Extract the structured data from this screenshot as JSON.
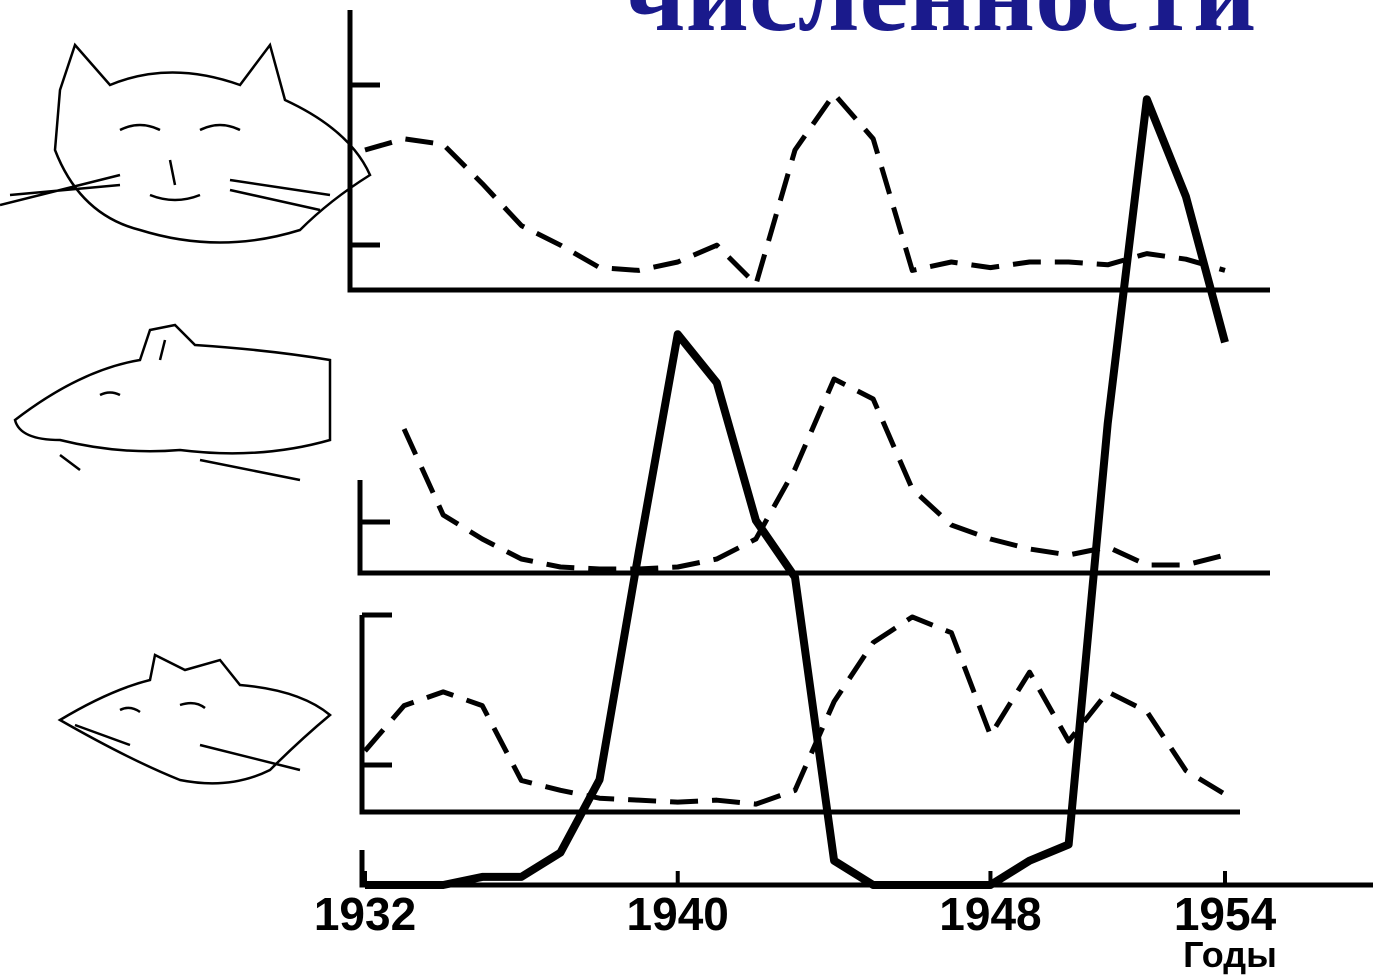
{
  "chart_data": [
    {
      "type": "line",
      "title": "численности",
      "line_style": "dashed",
      "color": "#000000",
      "x": [
        1932,
        1933,
        1934,
        1935,
        1936,
        1937,
        1938,
        1939,
        1940,
        1941,
        1942,
        1943,
        1944,
        1945,
        1946,
        1947,
        1948,
        1949,
        1950,
        1951,
        1952,
        1953,
        1954
      ],
      "values": [
        50,
        54,
        52,
        38,
        23,
        16,
        8,
        7,
        10,
        16,
        2,
        50,
        70,
        54,
        7,
        10,
        8,
        10,
        10,
        9,
        13,
        11,
        7
      ],
      "xlim": [
        1932,
        1954
      ],
      "ylim": [
        0,
        100
      ]
    },
    {
      "type": "line",
      "line_style": "dashed",
      "color": "#000000",
      "x": [
        1932,
        1933,
        1934,
        1935,
        1936,
        1937,
        1938,
        1939,
        1940,
        1941,
        1942,
        1943,
        1944,
        1945,
        1946,
        1947,
        1948,
        1949,
        1950,
        1951,
        1952,
        1953,
        1954
      ],
      "values": [
        null,
        72,
        29,
        17,
        7,
        3,
        2,
        2,
        3,
        7,
        17,
        52,
        97,
        87,
        42,
        24,
        17,
        12,
        9,
        13,
        4,
        4,
        9
      ],
      "xlim": [
        1932,
        1954
      ],
      "ylim": [
        0,
        100
      ]
    },
    {
      "type": "line",
      "line_style": "dashed",
      "color": "#000000",
      "x": [
        1932,
        1933,
        1934,
        1935,
        1936,
        1937,
        1938,
        1939,
        1940,
        1941,
        1942,
        1943,
        1944,
        1945,
        1946,
        1947,
        1948,
        1949,
        1950,
        1951,
        1952,
        1953,
        1954
      ],
      "values": [
        31,
        54,
        61,
        54,
        16,
        11,
        7,
        6,
        5,
        6,
        4,
        11,
        56,
        86,
        99,
        91,
        39,
        71,
        36,
        61,
        51,
        21,
        9
      ],
      "xlim": [
        1932,
        1954
      ],
      "ylim": [
        0,
        100
      ]
    },
    {
      "type": "line",
      "line_style": "solid",
      "color": "#000000",
      "x": [
        1932,
        1933,
        1934,
        1935,
        1936,
        1937,
        1938,
        1939,
        1940,
        1941,
        1942,
        1943,
        1944,
        1945,
        1946,
        1947,
        1948,
        1949,
        1950,
        1951,
        1952,
        1953,
        1954
      ],
      "values": [
        0,
        0,
        0,
        1,
        1,
        4,
        13,
        41,
        68,
        62,
        45,
        38,
        3,
        0,
        0,
        0,
        0,
        3,
        5,
        57,
        97,
        85,
        67
      ],
      "xlim": [
        1932,
        1954
      ],
      "ylim": [
        0,
        100
      ],
      "xticks": [
        1932,
        1940,
        1948,
        1954
      ],
      "xlabel": "Годы"
    }
  ]
}
